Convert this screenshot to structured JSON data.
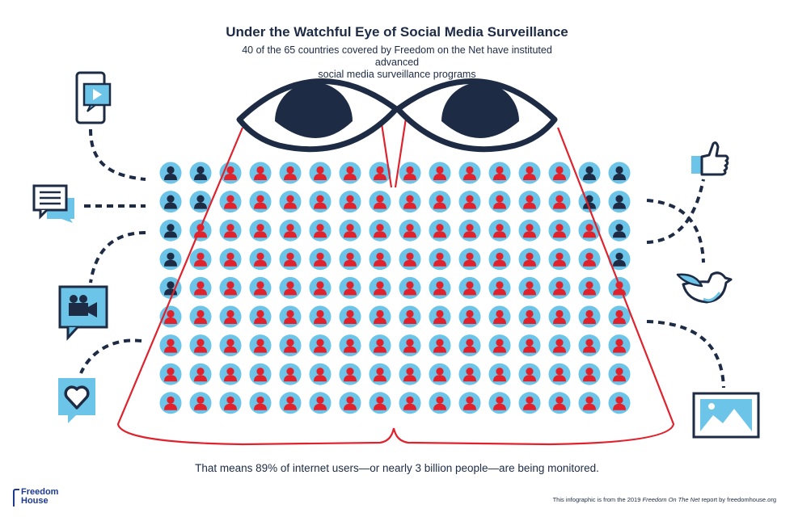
{
  "title": "Under the Watchful Eye of Social Media Surveillance",
  "subtitle_line1": "40 of the 65 countries covered by Freedom on the Net have instituted advanced",
  "subtitle_line2": "social media surveillance programs",
  "summary": "That means 89% of internet users—or nearly 3 billion people—are being monitored.",
  "brand": {
    "line1": "Freedom",
    "line2": "House"
  },
  "credit": {
    "prefix": "This infographic is from the 2019 ",
    "report": "Freedom On The Net",
    "suffix": " report by freedomhouse.org"
  },
  "grid": {
    "rows": 9,
    "cols": 16
  },
  "colors": {
    "navy": "#1d2b45",
    "red": "#e0222d",
    "light_blue": "#6cc5e8",
    "brand_blue": "#1d3a8f"
  },
  "icons": [
    "phone-video-icon",
    "chat-bubble-icon",
    "video-camera-icon",
    "heart-bubble-icon",
    "thumbs-up-icon",
    "bird-icon",
    "image-frame-icon"
  ]
}
